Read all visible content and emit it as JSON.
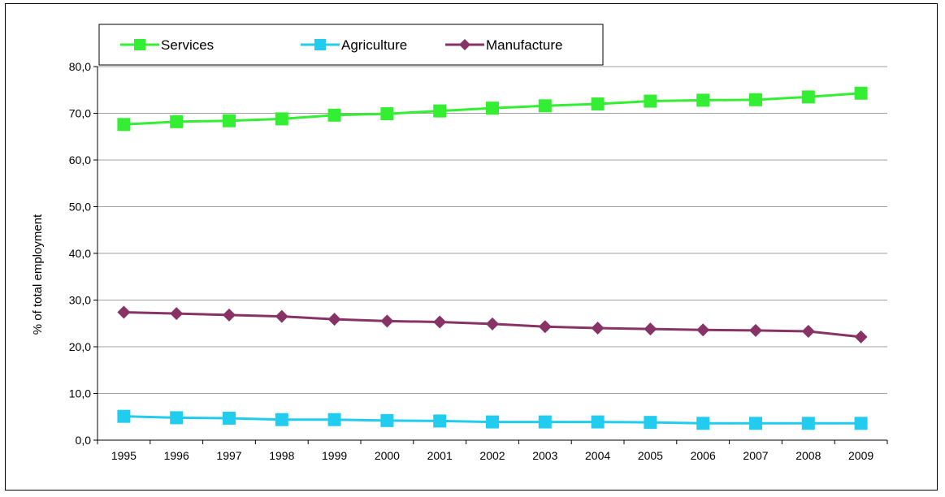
{
  "chart_data": {
    "type": "line",
    "title": "",
    "xlabel": "",
    "ylabel": "% of total employment",
    "ylim": [
      0,
      80
    ],
    "y_ticks": [
      "0,0",
      "10,0",
      "20,0",
      "30,0",
      "40,0",
      "50,0",
      "60,0",
      "70,0",
      "80,0"
    ],
    "x": [
      "1995",
      "1996",
      "1997",
      "1998",
      "1999",
      "2000",
      "2001",
      "2002",
      "2003",
      "2004",
      "2005",
      "2006",
      "2007",
      "2008",
      "2009"
    ],
    "grid": true,
    "legend_position": "top-left",
    "series": [
      {
        "name": "Services",
        "color": "#33ee33",
        "marker": "square",
        "values": [
          67.6,
          68.2,
          68.4,
          68.8,
          69.6,
          69.9,
          70.5,
          71.1,
          71.6,
          72.0,
          72.6,
          72.8,
          72.9,
          73.5,
          74.3
        ]
      },
      {
        "name": "Agriculture",
        "color": "#22ccee",
        "marker": "square",
        "values": [
          5.1,
          4.8,
          4.7,
          4.4,
          4.4,
          4.2,
          4.1,
          3.9,
          3.9,
          3.9,
          3.8,
          3.6,
          3.6,
          3.6,
          3.6
        ]
      },
      {
        "name": "Manufacture",
        "color": "#883366",
        "marker": "diamond",
        "values": [
          27.4,
          27.1,
          26.8,
          26.5,
          25.9,
          25.5,
          25.3,
          24.9,
          24.3,
          24.0,
          23.8,
          23.6,
          23.5,
          23.3,
          22.1
        ]
      }
    ]
  }
}
